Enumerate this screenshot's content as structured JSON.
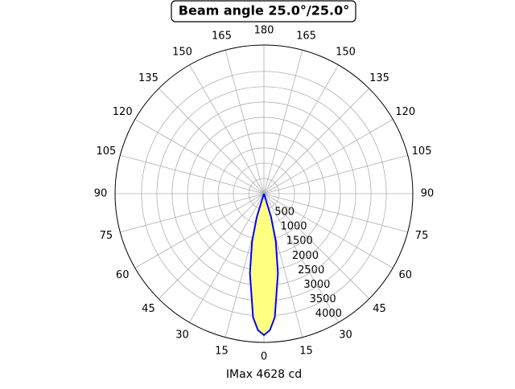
{
  "chart_data": {
    "type": "polar",
    "title": "Beam angle 25.0°/25.0°",
    "xlabel": "IMax 4628 cd",
    "series": [
      {
        "color": "#0000ff",
        "fill": "#ffff80",
        "x": [
          -20,
          -17,
          -14,
          -10,
          -5,
          -2.5,
          0,
          2.5,
          5,
          10,
          14,
          17,
          20
        ],
        "values": [
          0,
          800,
          1600,
          2640,
          4060,
          4470,
          4628,
          4470,
          4060,
          2640,
          1600,
          800,
          0
        ]
      }
    ],
    "ylim": [
      0,
      4865
    ],
    "yticks": [
      500,
      1000,
      1500,
      2000,
      2500,
      3000,
      3500,
      4000
    ],
    "xticks": [
      0,
      15,
      30,
      45,
      60,
      75,
      90,
      105,
      120,
      135,
      150,
      165,
      180,
      {
        "value": 195,
        "label": "165"
      },
      {
        "value": 210,
        "label": "150"
      },
      {
        "value": 225,
        "label": "135"
      },
      {
        "value": 240,
        "label": "120"
      },
      {
        "value": 255,
        "label": "105"
      },
      {
        "value": 270,
        "label": "90"
      },
      {
        "value": 285,
        "label": "75"
      },
      {
        "value": 300,
        "label": "60"
      },
      {
        "value": 315,
        "label": "45"
      },
      {
        "value": 330,
        "label": "30"
      },
      {
        "value": 345,
        "label": "15"
      }
    ],
    "grid": true
  }
}
